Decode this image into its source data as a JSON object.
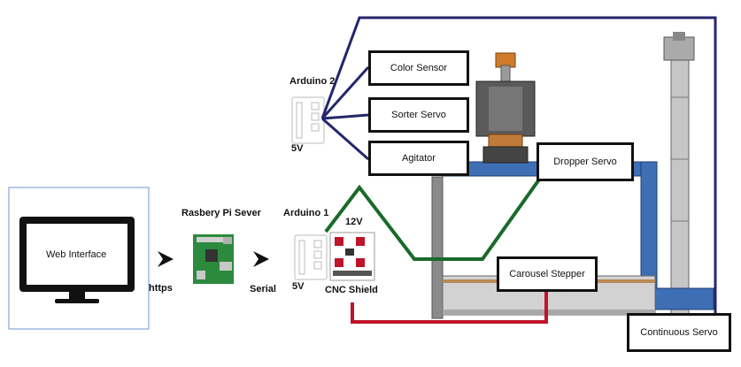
{
  "web_interface": {
    "label": "Web Interface"
  },
  "raspberry_pi": {
    "label": "Rasbery Pi Sever"
  },
  "arduino1": {
    "label": "Arduino 1",
    "voltage": "5V"
  },
  "arduino2": {
    "label": "Arduino 2",
    "voltage": "5V"
  },
  "cnc_shield": {
    "label": "CNC Shield",
    "voltage": "12V"
  },
  "connections": {
    "https": "https",
    "serial": "Serial"
  },
  "components": {
    "color_sensor": "Color Sensor",
    "sorter_servo": "Sorter Servo",
    "agitator": "Agitator",
    "dropper_servo": "Dropper Servo",
    "carousel_stepper": "Carousel Stepper",
    "continuous_servo": "Continuous Servo"
  },
  "colors": {
    "navy": "#24266b",
    "green": "#1a6a2a",
    "red": "#c0142a",
    "frame_blue": "#3e6fb5",
    "panel_border": "#6f95d8"
  }
}
